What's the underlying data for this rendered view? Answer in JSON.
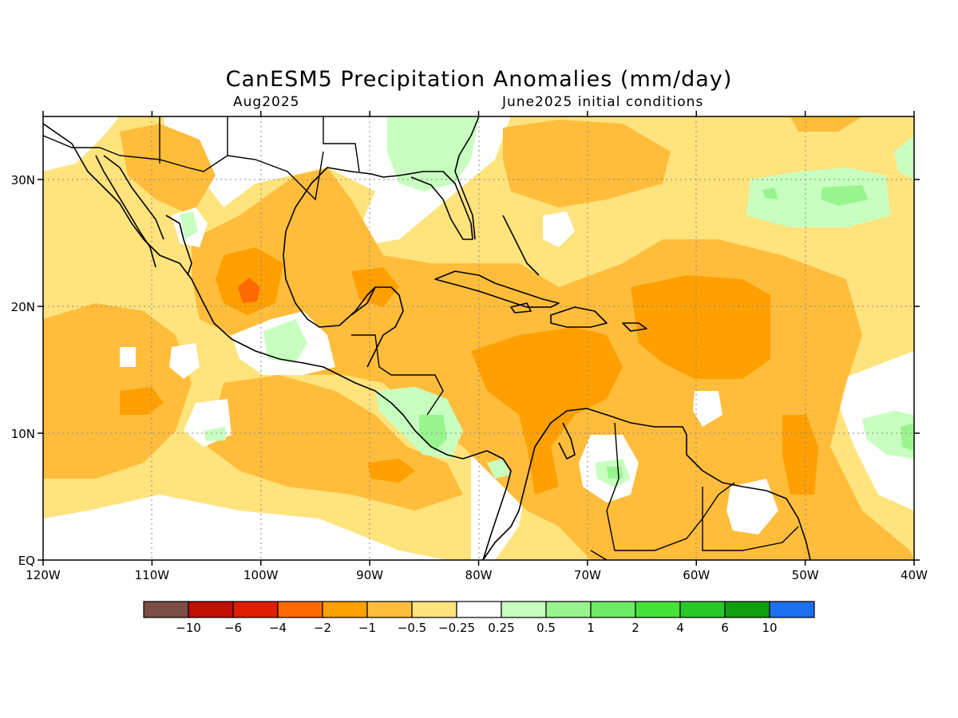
{
  "title": "CanESM5 Precipitation Anomalies (mm/day)",
  "subtitle_left": "Aug2025",
  "subtitle_right": "June2025 initial conditions",
  "axes": {
    "x_ticks": [
      "120W",
      "110W",
      "100W",
      "90W",
      "80W",
      "70W",
      "60W",
      "50W",
      "40W"
    ],
    "y_ticks": [
      "30N",
      "20N",
      "10N",
      "EQ"
    ]
  },
  "legend": {
    "colors": [
      "#7b4d45",
      "#c01000",
      "#e01f00",
      "#ff6a00",
      "#ff9f00",
      "#ffbd3b",
      "#ffe37d",
      "#ffffff",
      "#c8ffc0",
      "#98f58e",
      "#6eeb64",
      "#45e33a",
      "#28c828",
      "#109e10",
      "#1d6ff0"
    ],
    "labels": [
      "−10",
      "−6",
      "−4",
      "−2",
      "−1",
      "−0.5",
      "−0.25",
      "0.25",
      "0.5",
      "1",
      "2",
      "4",
      "6",
      "10"
    ]
  },
  "colors": {
    "dry_strong": "#ff6a00",
    "dry_moderate": "#ff9f00",
    "dry_weak": "#ffbd3b",
    "dry_slight": "#ffe37d",
    "wet_slight": "#c8ffc0",
    "wet_weak": "#98f58e",
    "wet_moderate": "#6eeb64"
  }
}
